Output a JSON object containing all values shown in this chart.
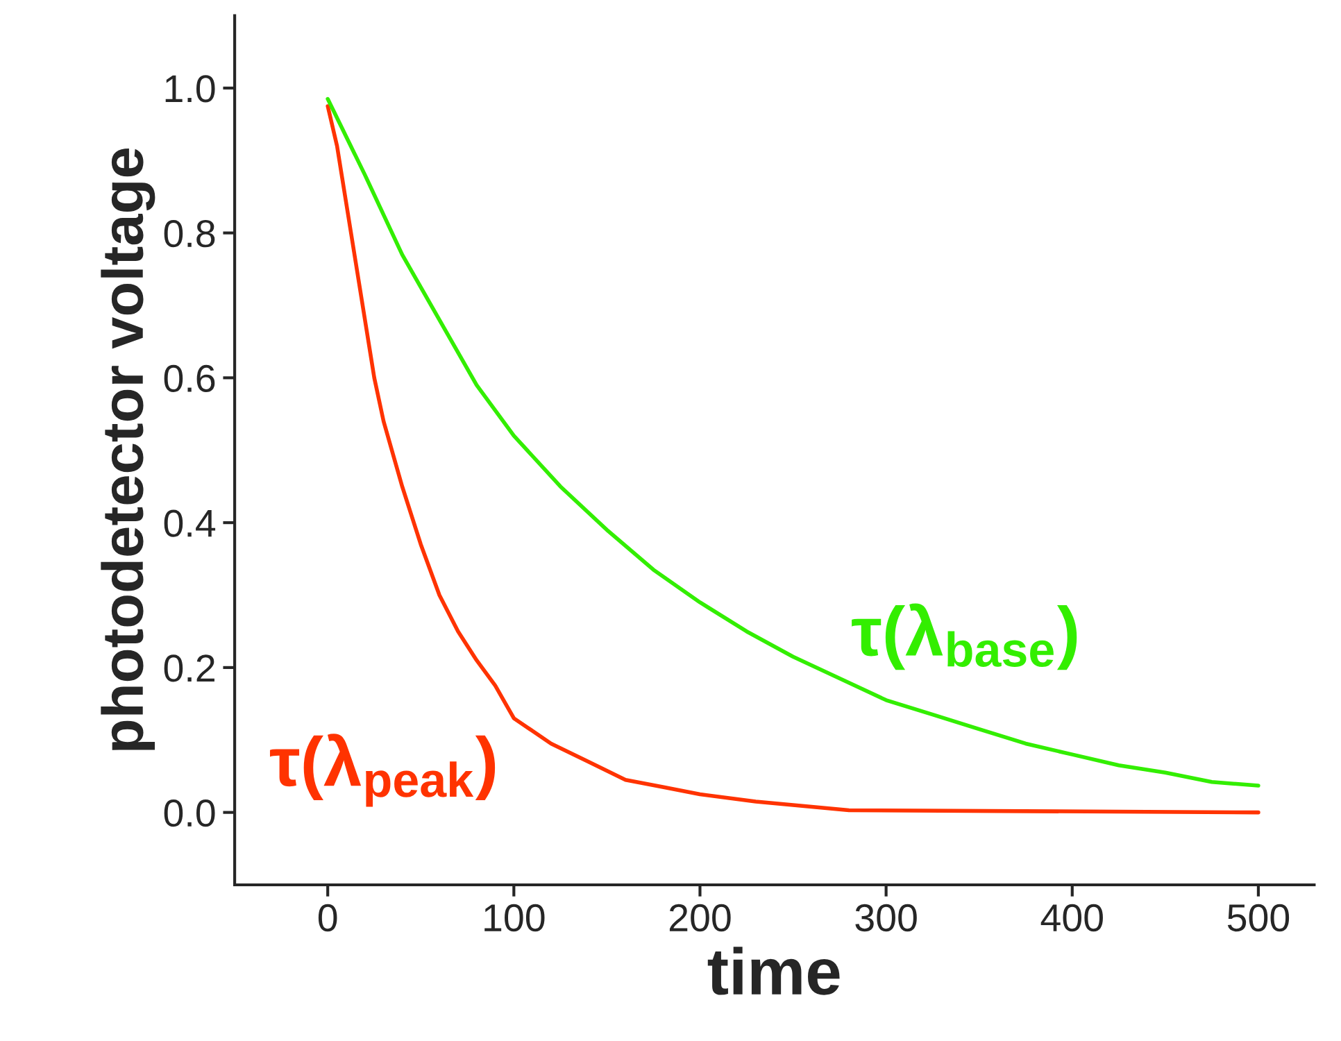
{
  "chart_data": {
    "type": "line",
    "xlabel": "time",
    "ylabel": "photodetector voltage",
    "xlim": [
      -50,
      530
    ],
    "ylim": [
      -0.1,
      1.1
    ],
    "xticks": [
      0,
      100,
      200,
      300,
      400,
      500
    ],
    "yticks": [
      {
        "value": 0,
        "label": "0.0"
      },
      {
        "value": 0.2,
        "label": "0.2"
      },
      {
        "value": 0.4,
        "label": "0.4"
      },
      {
        "value": 0.6,
        "label": "0.6"
      },
      {
        "value": 0.8,
        "label": "0.8"
      },
      {
        "value": 1,
        "label": "1.0"
      }
    ],
    "series": [
      {
        "name": "τ(λ$_{peak}$)",
        "color": "#ff3300",
        "x": [
          0,
          5,
          10,
          15,
          20,
          25,
          30,
          40,
          50,
          60,
          70,
          80,
          90,
          100,
          120,
          140,
          160,
          180,
          200,
          230,
          280,
          500
        ],
        "values": [
          0.975,
          0.92,
          0.84,
          0.76,
          0.68,
          0.6,
          0.54,
          0.45,
          0.37,
          0.3,
          0.25,
          0.21,
          0.175,
          0.13,
          0.095,
          0.07,
          0.045,
          0.035,
          0.025,
          0.015,
          0.003,
          0
        ]
      },
      {
        "name": "τ(λ$_{base}$)",
        "color": "#33ee00",
        "x": [
          0,
          20,
          40,
          60,
          80,
          100,
          125,
          150,
          175,
          200,
          225,
          250,
          275,
          300,
          325,
          350,
          375,
          400,
          425,
          450,
          475,
          500
        ],
        "values": [
          0.985,
          0.88,
          0.77,
          0.68,
          0.59,
          0.52,
          0.45,
          0.39,
          0.335,
          0.29,
          0.25,
          0.215,
          0.185,
          0.155,
          0.135,
          0.115,
          0.095,
          0.08,
          0.065,
          0.055,
          0.042,
          0.037
        ]
      }
    ],
    "grid": false,
    "legend": false
  }
}
